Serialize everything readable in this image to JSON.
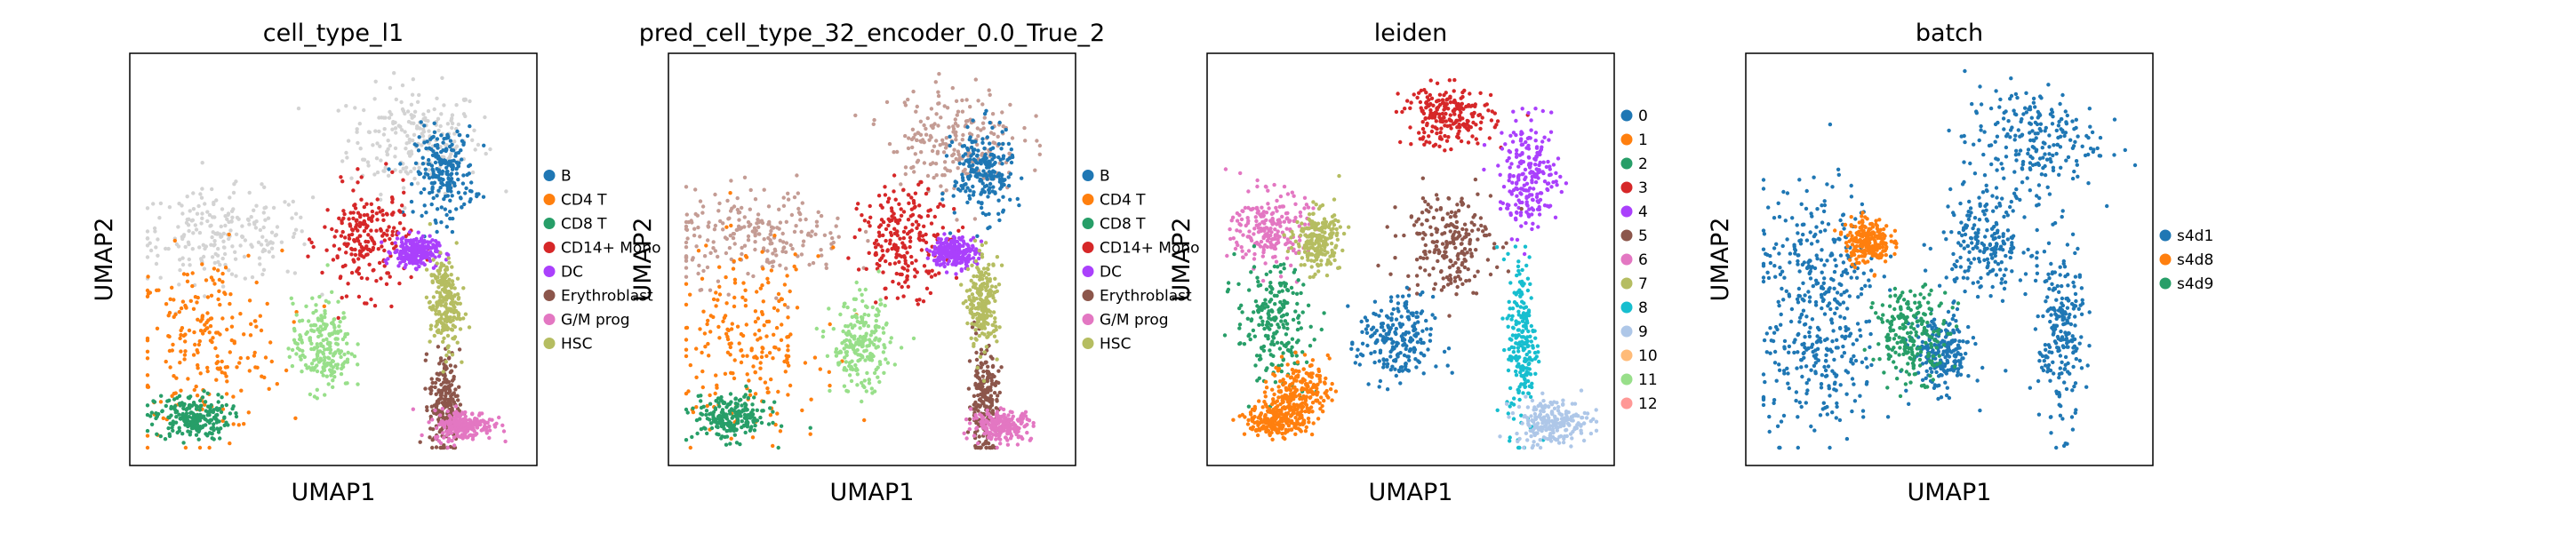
{
  "chart_data": [
    {
      "type": "scatter",
      "title": "cell_type_l1",
      "xlabel": "UMAP1",
      "ylabel": "UMAP2",
      "grid": false,
      "legend_position": "right",
      "legend": [
        {
          "label": "B",
          "color": "#1f77b4"
        },
        {
          "label": "CD4 T",
          "color": "#ff7f0e"
        },
        {
          "label": "CD8 T",
          "color": "#279e68"
        },
        {
          "label": "CD14+ Mono",
          "color": "#d62728"
        },
        {
          "label": "DC",
          "color": "#aa40fc"
        },
        {
          "label": "Erythroblast",
          "color": "#8c564b"
        },
        {
          "label": "G/M prog",
          "color": "#e377c2"
        },
        {
          "label": "HSC",
          "color": "#b5bd61"
        }
      ],
      "clusters": [
        {
          "color": "#d3d3d3",
          "x": 0.72,
          "y": 0.82,
          "sx": 0.09,
          "sy": 0.07
        },
        {
          "color": "#d3d3d3",
          "x": 0.2,
          "y": 0.56,
          "sx": 0.12,
          "sy": 0.06
        },
        {
          "color": "#ff7f0e",
          "x": 0.16,
          "y": 0.28,
          "sx": 0.1,
          "sy": 0.12
        },
        {
          "color": "#279e68",
          "x": 0.12,
          "y": 0.08,
          "sx": 0.05,
          "sy": 0.03
        },
        {
          "color": "#1f77b4",
          "x": 0.8,
          "y": 0.73,
          "sx": 0.04,
          "sy": 0.06
        },
        {
          "color": "#d62728",
          "x": 0.59,
          "y": 0.55,
          "sx": 0.06,
          "sy": 0.07
        },
        {
          "color": "#aa40fc",
          "x": 0.72,
          "y": 0.52,
          "sx": 0.03,
          "sy": 0.02
        },
        {
          "color": "#8c564b",
          "x": 0.8,
          "y": 0.12,
          "sx": 0.02,
          "sy": 0.07
        },
        {
          "color": "#e377c2",
          "x": 0.85,
          "y": 0.06,
          "sx": 0.04,
          "sy": 0.02
        },
        {
          "color": "#b5bd61",
          "x": 0.8,
          "y": 0.38,
          "sx": 0.02,
          "sy": 0.06
        },
        {
          "color": "#98df8a",
          "x": 0.47,
          "y": 0.27,
          "sx": 0.04,
          "sy": 0.06
        }
      ]
    },
    {
      "type": "scatter",
      "title": "pred_cell_type_32_encoder_0.0_True_2",
      "xlabel": "UMAP1",
      "ylabel": "UMAP2",
      "grid": false,
      "legend_position": "right",
      "legend": [
        {
          "label": "B",
          "color": "#1f77b4"
        },
        {
          "label": "CD4 T",
          "color": "#ff7f0e"
        },
        {
          "label": "CD8 T",
          "color": "#279e68"
        },
        {
          "label": "CD14+ Mono",
          "color": "#d62728"
        },
        {
          "label": "DC",
          "color": "#aa40fc"
        },
        {
          "label": "Erythroblast",
          "color": "#8c564b"
        },
        {
          "label": "G/M prog",
          "color": "#e377c2"
        },
        {
          "label": "HSC",
          "color": "#b5bd61"
        }
      ],
      "clusters": [
        {
          "color": "#c49c94",
          "x": 0.72,
          "y": 0.82,
          "sx": 0.09,
          "sy": 0.07
        },
        {
          "color": "#c49c94",
          "x": 0.2,
          "y": 0.56,
          "sx": 0.12,
          "sy": 0.06
        },
        {
          "color": "#ff7f0e",
          "x": 0.16,
          "y": 0.28,
          "sx": 0.1,
          "sy": 0.12
        },
        {
          "color": "#279e68",
          "x": 0.12,
          "y": 0.08,
          "sx": 0.05,
          "sy": 0.03
        },
        {
          "color": "#1f77b4",
          "x": 0.8,
          "y": 0.73,
          "sx": 0.04,
          "sy": 0.06
        },
        {
          "color": "#d62728",
          "x": 0.59,
          "y": 0.55,
          "sx": 0.06,
          "sy": 0.07
        },
        {
          "color": "#aa40fc",
          "x": 0.72,
          "y": 0.52,
          "sx": 0.03,
          "sy": 0.02
        },
        {
          "color": "#8c564b",
          "x": 0.8,
          "y": 0.12,
          "sx": 0.02,
          "sy": 0.07
        },
        {
          "color": "#e377c2",
          "x": 0.85,
          "y": 0.06,
          "sx": 0.04,
          "sy": 0.02
        },
        {
          "color": "#b5bd61",
          "x": 0.8,
          "y": 0.38,
          "sx": 0.02,
          "sy": 0.06
        },
        {
          "color": "#98df8a",
          "x": 0.47,
          "y": 0.27,
          "sx": 0.04,
          "sy": 0.06
        }
      ]
    },
    {
      "type": "scatter",
      "title": "leiden",
      "xlabel": "UMAP1",
      "ylabel": "UMAP2",
      "grid": false,
      "legend_position": "right",
      "legend": [
        {
          "label": "0",
          "color": "#1f77b4"
        },
        {
          "label": "1",
          "color": "#ff7f0e"
        },
        {
          "label": "2",
          "color": "#279e68"
        },
        {
          "label": "3",
          "color": "#d62728"
        },
        {
          "label": "4",
          "color": "#aa40fc"
        },
        {
          "label": "5",
          "color": "#8c564b"
        },
        {
          "label": "6",
          "color": "#e377c2"
        },
        {
          "label": "7",
          "color": "#b5bd61"
        },
        {
          "label": "8",
          "color": "#17becf"
        },
        {
          "label": "9",
          "color": "#aec7e8"
        },
        {
          "label": "10",
          "color": "#ffbb78"
        },
        {
          "label": "11",
          "color": "#98df8a"
        },
        {
          "label": "12",
          "color": "#ff9896"
        }
      ],
      "clusters": [
        {
          "color": "#d62728",
          "x": 0.6,
          "y": 0.88,
          "sx": 0.06,
          "sy": 0.04
        },
        {
          "color": "#aa40fc",
          "x": 0.82,
          "y": 0.72,
          "sx": 0.04,
          "sy": 0.07
        },
        {
          "color": "#8c564b",
          "x": 0.6,
          "y": 0.55,
          "sx": 0.06,
          "sy": 0.07
        },
        {
          "color": "#e377c2",
          "x": 0.12,
          "y": 0.58,
          "sx": 0.05,
          "sy": 0.05
        },
        {
          "color": "#b5bd61",
          "x": 0.25,
          "y": 0.55,
          "sx": 0.03,
          "sy": 0.04
        },
        {
          "color": "#279e68",
          "x": 0.13,
          "y": 0.33,
          "sx": 0.05,
          "sy": 0.08
        },
        {
          "color": "#ff7f0e",
          "x": 0.2,
          "y": 0.15,
          "sx": 0.04,
          "sy": 0.04
        },
        {
          "color": "#ff7f0e",
          "x": 0.14,
          "y": 0.07,
          "sx": 0.04,
          "sy": 0.02
        },
        {
          "color": "#1f77b4",
          "x": 0.46,
          "y": 0.28,
          "sx": 0.05,
          "sy": 0.06
        },
        {
          "color": "#17becf",
          "x": 0.8,
          "y": 0.28,
          "sx": 0.02,
          "sy": 0.12
        },
        {
          "color": "#aec7e8",
          "x": 0.88,
          "y": 0.07,
          "sx": 0.05,
          "sy": 0.03
        }
      ]
    },
    {
      "type": "scatter",
      "title": "batch",
      "xlabel": "UMAP1",
      "ylabel": "UMAP2",
      "grid": false,
      "legend_position": "right",
      "legend": [
        {
          "label": "s4d1",
          "color": "#1f77b4"
        },
        {
          "label": "s4d8",
          "color": "#ff7f0e"
        },
        {
          "label": "s4d9",
          "color": "#279e68"
        }
      ],
      "clusters": [
        {
          "color": "#1f77b4",
          "x": 0.72,
          "y": 0.82,
          "sx": 0.09,
          "sy": 0.07
        },
        {
          "color": "#1f77b4",
          "x": 0.15,
          "y": 0.5,
          "sx": 0.08,
          "sy": 0.1
        },
        {
          "color": "#ff7f0e",
          "x": 0.28,
          "y": 0.55,
          "sx": 0.03,
          "sy": 0.03
        },
        {
          "color": "#1f77b4",
          "x": 0.15,
          "y": 0.22,
          "sx": 0.08,
          "sy": 0.1
        },
        {
          "color": "#1f77b4",
          "x": 0.6,
          "y": 0.55,
          "sx": 0.06,
          "sy": 0.07
        },
        {
          "color": "#1f77b4",
          "x": 0.48,
          "y": 0.25,
          "sx": 0.04,
          "sy": 0.05
        },
        {
          "color": "#1f77b4",
          "x": 0.8,
          "y": 0.3,
          "sx": 0.03,
          "sy": 0.12
        },
        {
          "color": "#279e68",
          "x": 0.4,
          "y": 0.3,
          "sx": 0.05,
          "sy": 0.06
        }
      ]
    }
  ]
}
